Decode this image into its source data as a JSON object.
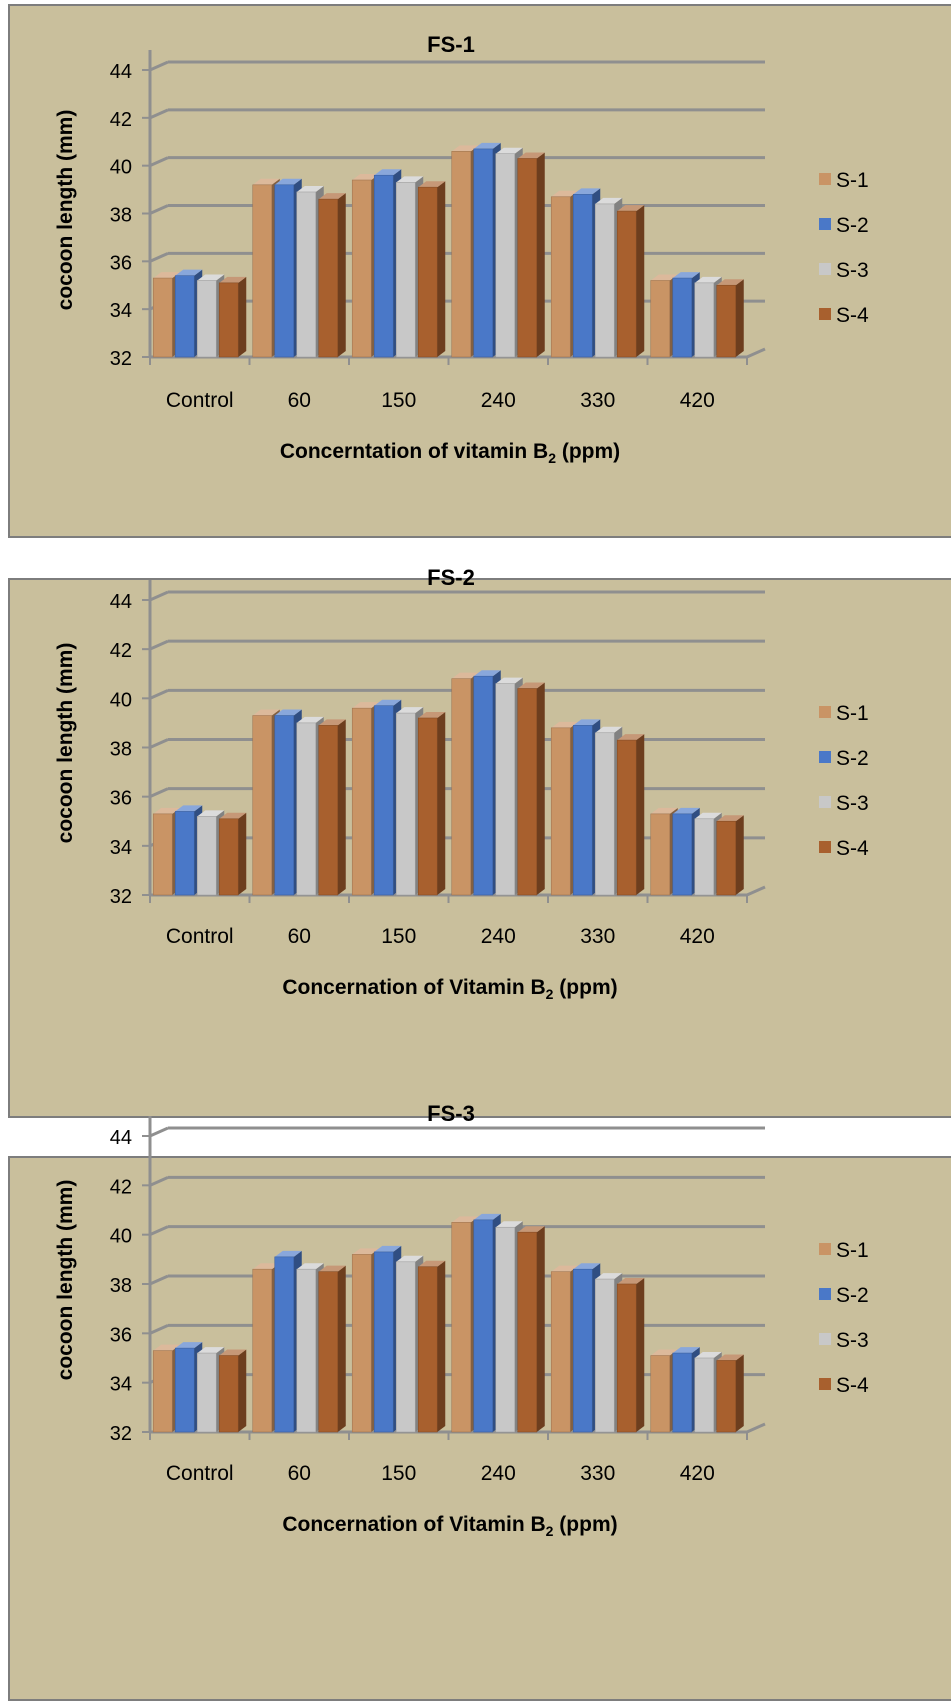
{
  "colors": {
    "background": "#C9BF9C",
    "wall_line": "#8F8F8F",
    "S-1": "#C99465",
    "S-2": "#4A78C8",
    "S-3": "#C8C8C8",
    "S-4": "#A8602E"
  },
  "chart_data": [
    {
      "type": "bar",
      "title": "FS-1",
      "xlabel": "Concerntation of vitamin B",
      "xlabel_sub": "2",
      "xlabel_tail": " (ppm)",
      "ylabel": "cocoon length  (mm)",
      "ylim": [
        32,
        44
      ],
      "yticks": [
        "32",
        "34",
        "36",
        "38",
        "40",
        "42",
        "44"
      ],
      "categories": [
        "Control",
        "60",
        "150",
        "240",
        "330",
        "420"
      ],
      "legend_position": "right",
      "series": [
        {
          "name": "S-1",
          "values": [
            35.3,
            39.2,
            39.4,
            40.6,
            38.7,
            35.2
          ]
        },
        {
          "name": "S-2",
          "values": [
            35.4,
            39.2,
            39.6,
            40.7,
            38.8,
            35.3
          ]
        },
        {
          "name": "S-3",
          "values": [
            35.2,
            38.9,
            39.3,
            40.5,
            38.4,
            35.1
          ]
        },
        {
          "name": "S-4",
          "values": [
            35.1,
            38.6,
            39.1,
            40.3,
            38.1,
            35.0
          ]
        }
      ]
    },
    {
      "type": "bar",
      "title": "FS-2",
      "xlabel": "Concernation of Vitamin B",
      "xlabel_sub": "2",
      "xlabel_tail": " (ppm)",
      "ylabel": "cocoon length  (mm)",
      "ylim": [
        32,
        44
      ],
      "yticks": [
        "32",
        "34",
        "36",
        "38",
        "40",
        "42",
        "44"
      ],
      "categories": [
        "Control",
        "60",
        "150",
        "240",
        "330",
        "420"
      ],
      "legend_position": "right",
      "series": [
        {
          "name": "S-1",
          "values": [
            35.3,
            39.3,
            39.6,
            40.8,
            38.8,
            35.3
          ]
        },
        {
          "name": "S-2",
          "values": [
            35.4,
            39.3,
            39.7,
            40.9,
            38.9,
            35.3
          ]
        },
        {
          "name": "S-3",
          "values": [
            35.2,
            39.0,
            39.4,
            40.6,
            38.6,
            35.1
          ]
        },
        {
          "name": "S-4",
          "values": [
            35.1,
            38.9,
            39.2,
            40.4,
            38.3,
            35.0
          ]
        }
      ]
    },
    {
      "type": "bar",
      "title": "FS-3",
      "xlabel": "Concernation of Vitamin B",
      "xlabel_sub": "2",
      "xlabel_tail": " (ppm)",
      "ylabel": "cocoon length  (mm)",
      "ylim": [
        32,
        44
      ],
      "yticks": [
        "32",
        "34",
        "36",
        "38",
        "40",
        "42",
        "44"
      ],
      "categories": [
        "Control",
        "60",
        "150",
        "240",
        "330",
        "420"
      ],
      "legend_position": "right",
      "series": [
        {
          "name": "S-1",
          "values": [
            35.3,
            38.6,
            39.2,
            40.5,
            38.5,
            35.1
          ]
        },
        {
          "name": "S-2",
          "values": [
            35.4,
            39.1,
            39.3,
            40.6,
            38.6,
            35.2
          ]
        },
        {
          "name": "S-3",
          "values": [
            35.2,
            38.6,
            38.9,
            40.3,
            38.2,
            35.0
          ]
        },
        {
          "name": "S-4",
          "values": [
            35.1,
            38.5,
            38.7,
            40.1,
            38.0,
            34.9
          ]
        }
      ]
    }
  ]
}
